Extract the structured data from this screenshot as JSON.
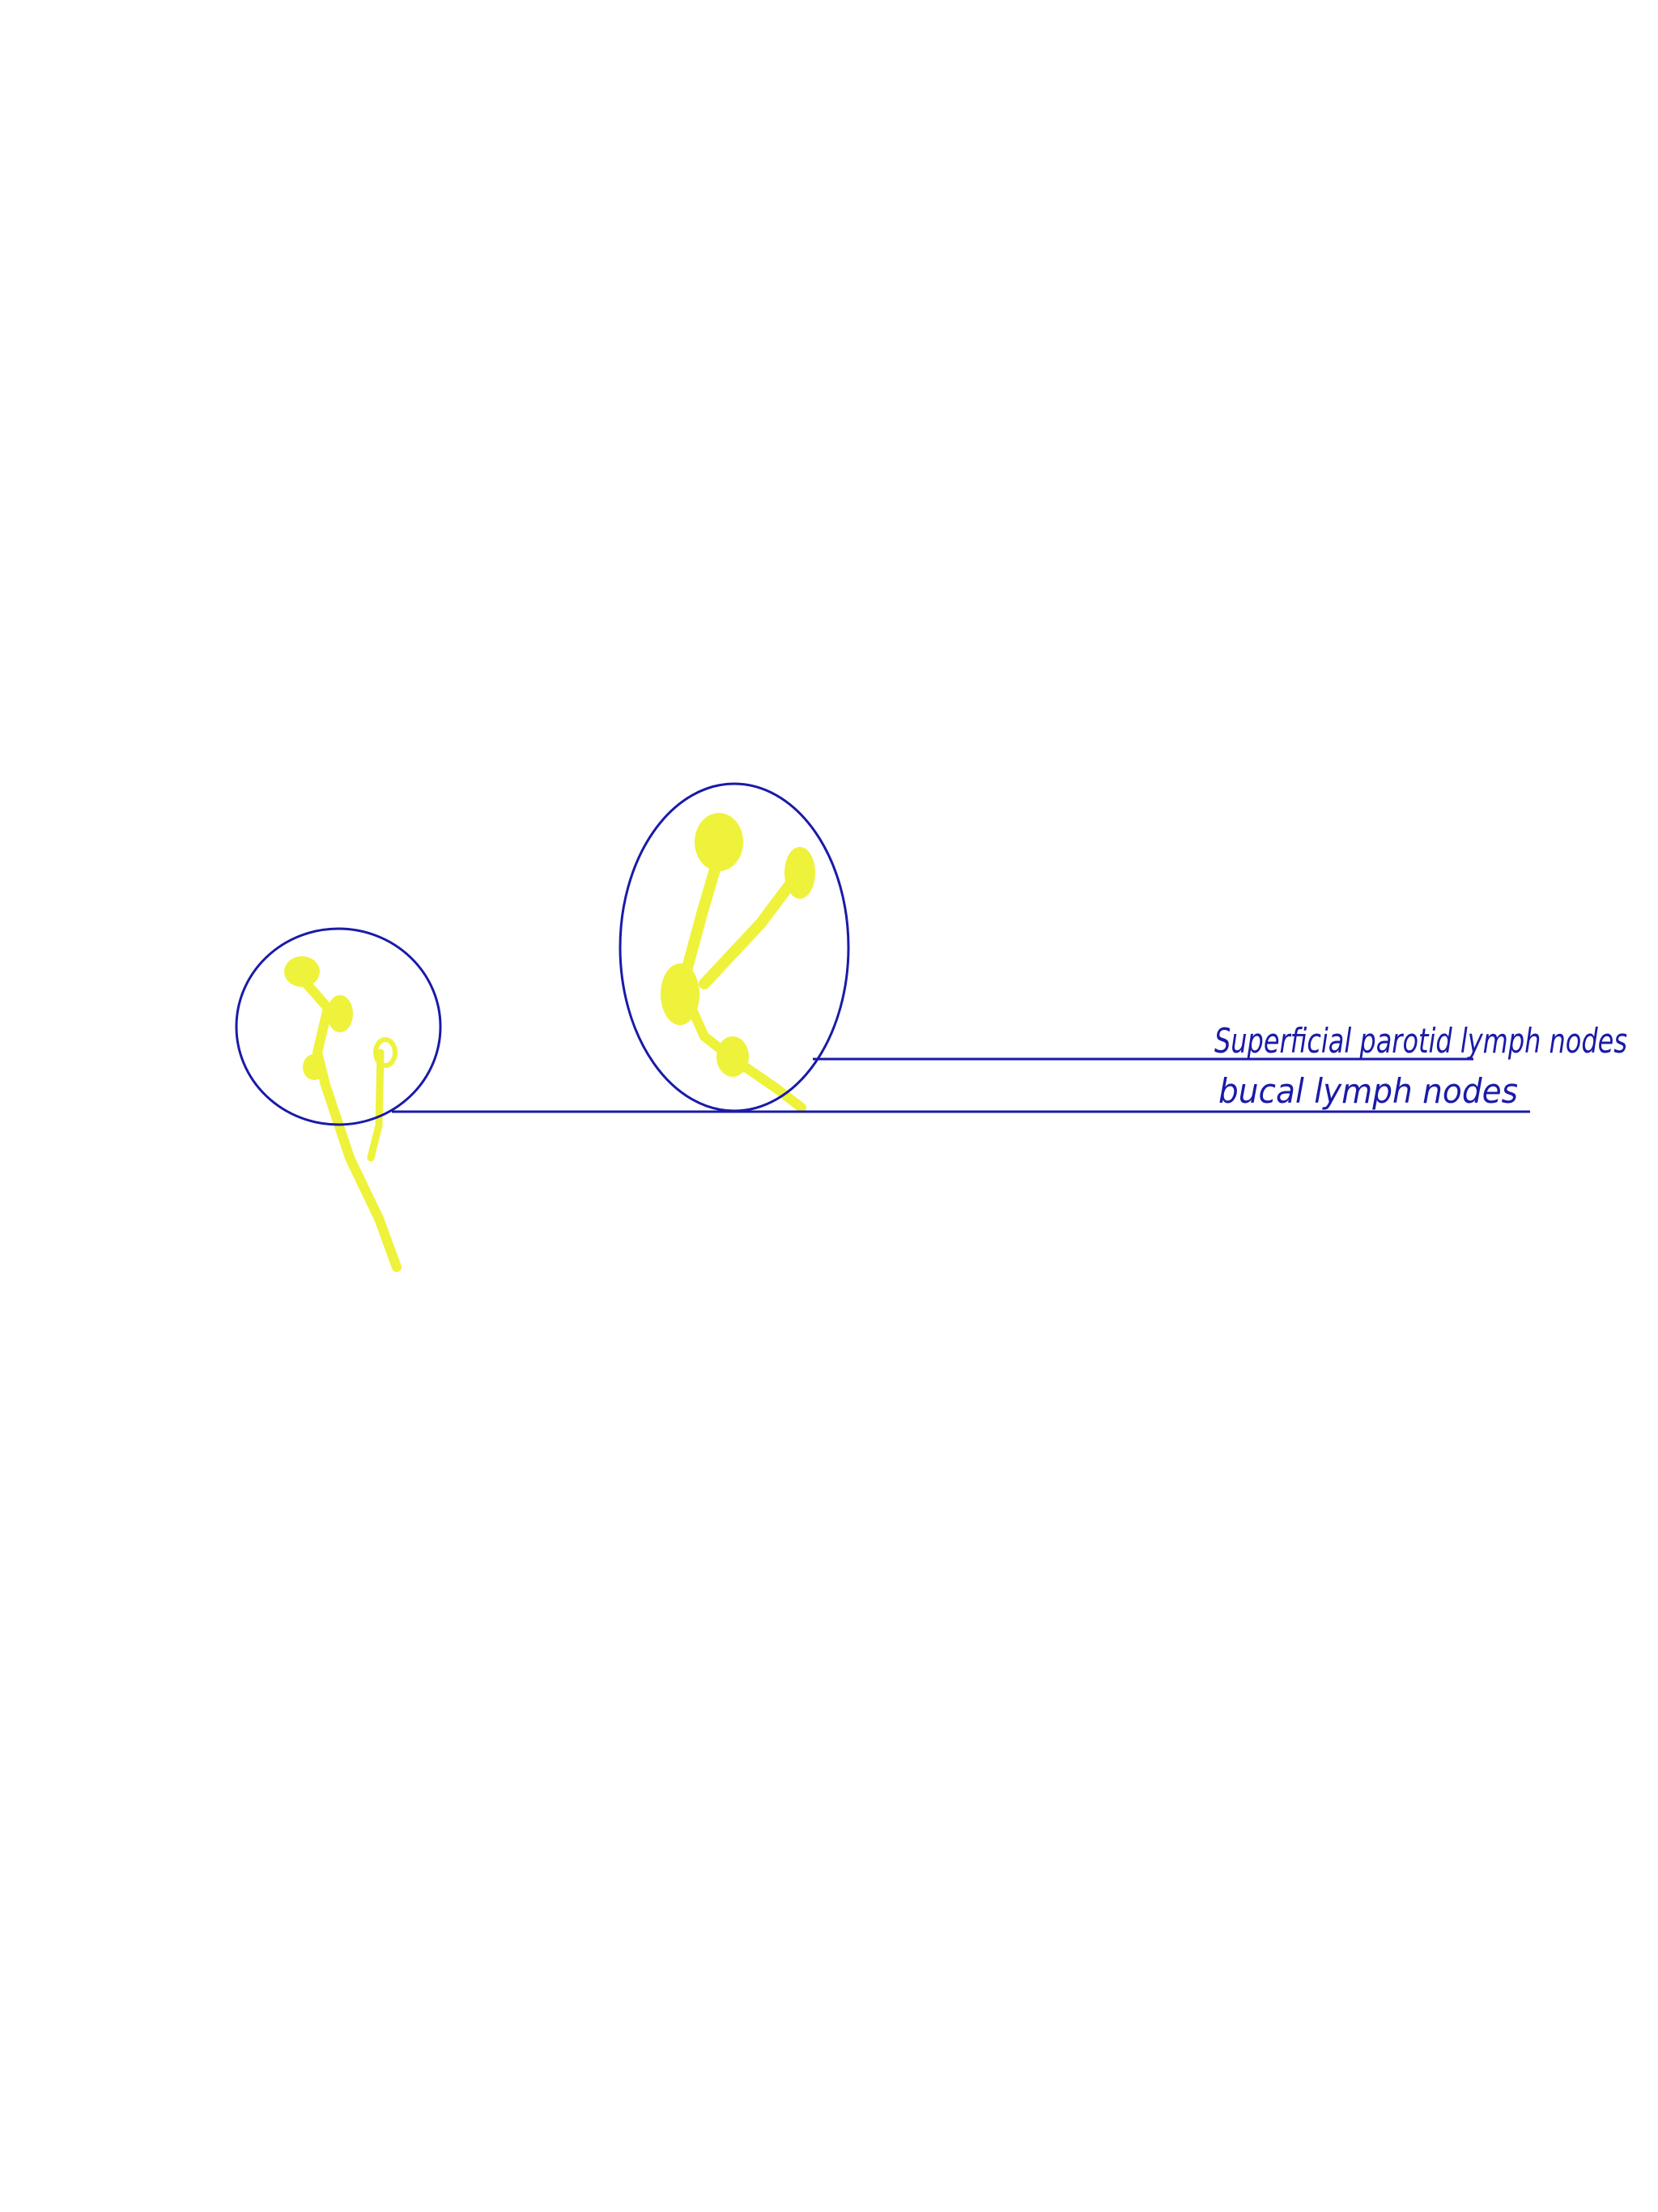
{
  "labels": {
    "superficial_parotid": "Superficial parotid lymph nodes",
    "buccal": "bucal lymph nodes"
  },
  "colors": {
    "background": "#ffffff",
    "outline": "#1a1aa8",
    "node": "#eef23a",
    "label": "#1a1aa8"
  }
}
